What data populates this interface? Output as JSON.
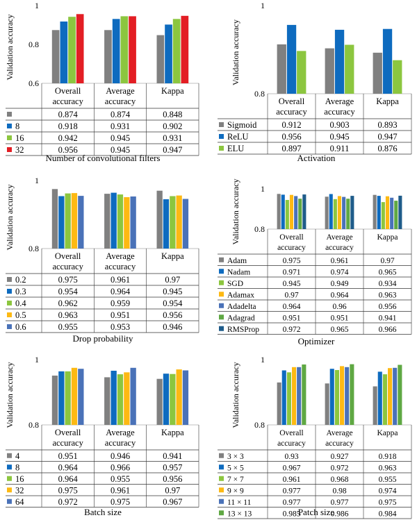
{
  "colors": {
    "gray": "#808080",
    "blue": "#0E6BBF",
    "green": "#8CC63F",
    "red": "#E31E24",
    "yellow": "#FDB913",
    "slate": "#4A72B8",
    "darkgreen": "#5FA843",
    "navy": "#1F5C8A"
  },
  "chart_data": [
    {
      "type": "bar",
      "title": "Number of convolutional filters",
      "ylabel": "Validation accuracy",
      "ylim": [
        0.6,
        1
      ],
      "yticks": [
        "0.6",
        "0.8",
        "1"
      ],
      "categories": [
        "Overall accuracy",
        "Average accuracy",
        "Kappa"
      ],
      "series": [
        {
          "name": "",
          "color": "gray",
          "values": [
            0.874,
            0.874,
            0.848
          ]
        },
        {
          "name": "8",
          "color": "blue",
          "values": [
            0.918,
            0.931,
            0.902
          ]
        },
        {
          "name": "16",
          "color": "green",
          "values": [
            0.942,
            0.945,
            0.931
          ]
        },
        {
          "name": "32",
          "color": "red",
          "values": [
            0.956,
            0.945,
            0.947
          ]
        }
      ]
    },
    {
      "type": "bar",
      "title": "Activation",
      "ylabel": "Validation accuracy",
      "ylim": [
        0.8,
        1
      ],
      "yticks": [
        "0.8",
        "1"
      ],
      "categories": [
        "Overall accuracy",
        "Average accuracy",
        "Kappa"
      ],
      "series": [
        {
          "name": "Sigmoid",
          "color": "gray",
          "values": [
            0.912,
            0.903,
            0.893
          ]
        },
        {
          "name": "ReLU",
          "color": "blue",
          "values": [
            0.956,
            0.945,
            0.947
          ]
        },
        {
          "name": "ELU",
          "color": "green",
          "values": [
            0.897,
            0.911,
            0.876
          ]
        }
      ]
    },
    {
      "type": "bar",
      "title": "Drop probability",
      "ylabel": "Validation accuracy",
      "ylim": [
        0.8,
        1
      ],
      "yticks": [
        "0.8",
        "1"
      ],
      "categories": [
        "Overall accuracy",
        "Average accuracy",
        "Kappa"
      ],
      "series": [
        {
          "name": "0.2",
          "color": "gray",
          "values": [
            0.975,
            0.961,
            0.97
          ]
        },
        {
          "name": "0.3",
          "color": "blue",
          "values": [
            0.954,
            0.964,
            0.945
          ]
        },
        {
          "name": "0.4",
          "color": "green",
          "values": [
            0.962,
            0.959,
            0.954
          ]
        },
        {
          "name": "0.5",
          "color": "yellow",
          "values": [
            0.963,
            0.951,
            0.956
          ]
        },
        {
          "name": "0.6",
          "color": "slate",
          "values": [
            0.955,
            0.953,
            0.946
          ]
        }
      ]
    },
    {
      "type": "bar",
      "title": "Optimizer",
      "ylabel": "Validation accuracy",
      "ylim": [
        0.8,
        1
      ],
      "yticks": [
        "0.8",
        "1"
      ],
      "categories": [
        "Overall accuracy",
        "Average accuracy",
        "Kappa"
      ],
      "series": [
        {
          "name": "Adam",
          "color": "gray",
          "values": [
            0.975,
            0.961,
            0.97
          ]
        },
        {
          "name": "Nadam",
          "color": "blue",
          "values": [
            0.971,
            0.974,
            0.965
          ]
        },
        {
          "name": "SGD",
          "color": "green",
          "values": [
            0.945,
            0.949,
            0.934
          ]
        },
        {
          "name": "Adamax",
          "color": "yellow",
          "values": [
            0.97,
            0.964,
            0.963
          ]
        },
        {
          "name": "Adadelta",
          "color": "slate",
          "values": [
            0.964,
            0.96,
            0.956
          ]
        },
        {
          "name": "Adagrad",
          "color": "darkgreen",
          "values": [
            0.951,
            0.951,
            0.941
          ]
        },
        {
          "name": "RMSProp",
          "color": "navy",
          "values": [
            0.972,
            0.965,
            0.966
          ]
        }
      ]
    },
    {
      "type": "bar",
      "title": "Batch size",
      "ylabel": "Validation accuracy",
      "ylim": [
        0.8,
        1
      ],
      "yticks": [
        "0.8",
        "1"
      ],
      "categories": [
        "Overall accuracy",
        "Average accuracy",
        "Kappa"
      ],
      "series": [
        {
          "name": "4",
          "color": "gray",
          "values": [
            0.951,
            0.946,
            0.941
          ]
        },
        {
          "name": "8",
          "color": "blue",
          "values": [
            0.964,
            0.966,
            0.957
          ]
        },
        {
          "name": "16",
          "color": "green",
          "values": [
            0.964,
            0.955,
            0.956
          ]
        },
        {
          "name": "32",
          "color": "yellow",
          "values": [
            0.975,
            0.961,
            0.97
          ]
        },
        {
          "name": "64",
          "color": "slate",
          "values": [
            0.972,
            0.975,
            0.967
          ]
        }
      ]
    },
    {
      "type": "bar",
      "title": "Patch size",
      "ylabel": "Validation accuracy",
      "ylim": [
        0.8,
        1
      ],
      "yticks": [
        "0.8",
        "1"
      ],
      "categories": [
        "Overall accuracy",
        "Average accuracy",
        "Kappa"
      ],
      "series": [
        {
          "name": "3 × 3",
          "color": "gray",
          "values": [
            0.93,
            0.927,
            0.918
          ]
        },
        {
          "name": "5 × 5",
          "color": "blue",
          "values": [
            0.967,
            0.972,
            0.963
          ]
        },
        {
          "name": "7 × 7",
          "color": "green",
          "values": [
            0.961,
            0.968,
            0.955
          ]
        },
        {
          "name": "9 × 9",
          "color": "yellow",
          "values": [
            0.977,
            0.98,
            0.974
          ]
        },
        {
          "name": "11 × 11",
          "color": "slate",
          "values": [
            0.977,
            0.977,
            0.975
          ]
        },
        {
          "name": "13 × 13",
          "color": "darkgreen",
          "values": [
            0.985,
            0.986,
            0.984
          ]
        }
      ]
    }
  ]
}
